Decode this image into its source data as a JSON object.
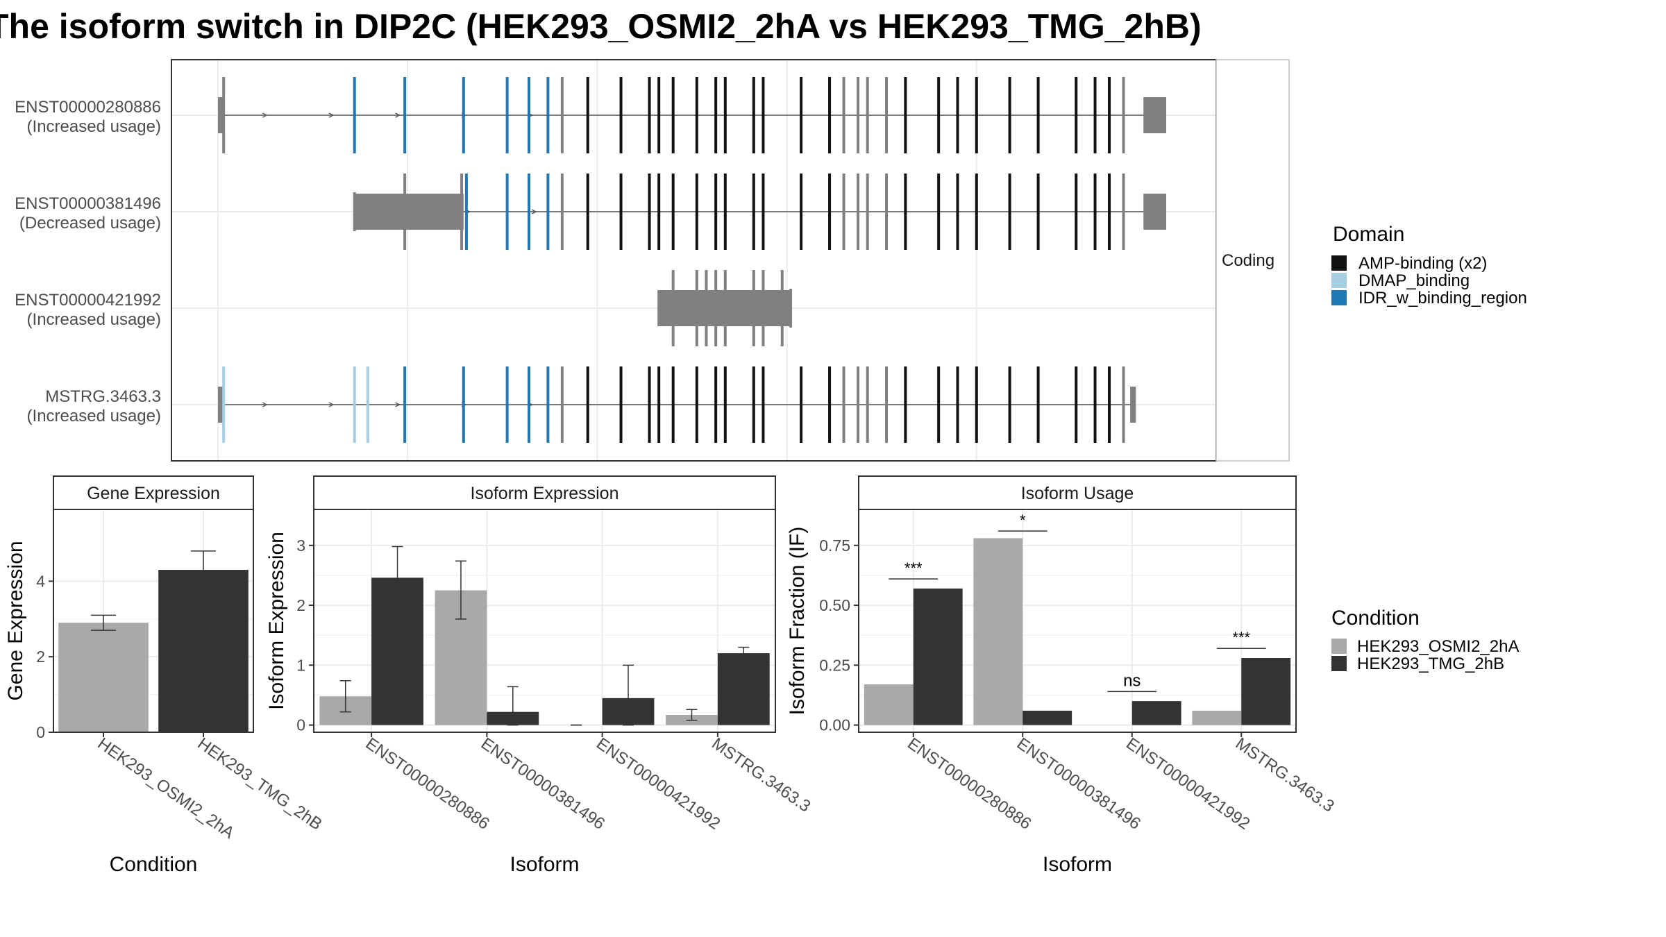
{
  "title": "The isoform switch in DIP2C (HEK293_OSMI2_2hA vs HEK293_TMG_2hB)",
  "colors": {
    "grey_bar": "#A9A9A9",
    "dark_bar": "#333333",
    "amp": "#111111",
    "dmap": "#A6CEE3",
    "idr": "#1F78B4",
    "noncoding_exon": "#808080",
    "intron": "#555555",
    "grid": "#EBEBEB",
    "strip_bg": "#FFFFFF"
  },
  "structure": {
    "strip_label": "Coding",
    "transcripts": [
      {
        "id": "ENST00000280886",
        "label_line1": "ENST00000280886",
        "label_line2": "(Increased usage)",
        "start": 0.0,
        "end": 100.0,
        "cds_start": 0.6,
        "cds_end": 97.6,
        "exons": [
          {
            "pos": 0.6,
            "type": "grey"
          },
          {
            "pos": 14.4,
            "type": "idr"
          },
          {
            "pos": 19.7,
            "type": "idr"
          },
          {
            "pos": 25.9,
            "type": "idr"
          },
          {
            "pos": 30.5,
            "type": "idr"
          },
          {
            "pos": 32.8,
            "type": "idr"
          },
          {
            "pos": 34.8,
            "type": "idr"
          },
          {
            "pos": 36.3,
            "type": "grey"
          },
          {
            "pos": 39.0,
            "type": "amp"
          },
          {
            "pos": 42.5,
            "type": "amp"
          },
          {
            "pos": 45.5,
            "type": "amp"
          },
          {
            "pos": 46.5,
            "type": "amp"
          },
          {
            "pos": 48.0,
            "type": "amp"
          },
          {
            "pos": 50.5,
            "type": "amp"
          },
          {
            "pos": 52.5,
            "type": "amp"
          },
          {
            "pos": 53.5,
            "type": "amp"
          },
          {
            "pos": 56.5,
            "type": "amp"
          },
          {
            "pos": 57.5,
            "type": "amp"
          },
          {
            "pos": 61.5,
            "type": "amp"
          },
          {
            "pos": 64.5,
            "type": "amp"
          },
          {
            "pos": 66.0,
            "type": "grey"
          },
          {
            "pos": 67.5,
            "type": "grey"
          },
          {
            "pos": 68.5,
            "type": "grey"
          },
          {
            "pos": 70.5,
            "type": "grey"
          },
          {
            "pos": 72.5,
            "type": "amp"
          },
          {
            "pos": 76.0,
            "type": "amp"
          },
          {
            "pos": 78.0,
            "type": "amp"
          },
          {
            "pos": 80.0,
            "type": "amp"
          },
          {
            "pos": 83.5,
            "type": "amp"
          },
          {
            "pos": 86.5,
            "type": "amp"
          },
          {
            "pos": 90.5,
            "type": "amp"
          },
          {
            "pos": 92.5,
            "type": "amp"
          },
          {
            "pos": 94.0,
            "type": "amp"
          },
          {
            "pos": 95.5,
            "type": "grey"
          }
        ]
      },
      {
        "id": "ENST00000381496",
        "label_line1": "ENST00000381496",
        "label_line2": "(Decreased usage)",
        "start": 14.4,
        "end": 100.0,
        "cds_start": 25.9,
        "cds_end": 97.6,
        "exons": [
          {
            "pos": 14.4,
            "type": "grey"
          },
          {
            "pos": 19.7,
            "type": "grey"
          },
          {
            "pos": 25.7,
            "type": "grey"
          },
          {
            "pos": 26.2,
            "type": "idr"
          },
          {
            "pos": 30.5,
            "type": "idr"
          },
          {
            "pos": 32.8,
            "type": "idr"
          },
          {
            "pos": 34.8,
            "type": "idr"
          },
          {
            "pos": 36.3,
            "type": "grey"
          },
          {
            "pos": 39.0,
            "type": "amp"
          },
          {
            "pos": 42.5,
            "type": "amp"
          },
          {
            "pos": 45.5,
            "type": "amp"
          },
          {
            "pos": 46.5,
            "type": "amp"
          },
          {
            "pos": 48.0,
            "type": "amp"
          },
          {
            "pos": 50.5,
            "type": "amp"
          },
          {
            "pos": 52.5,
            "type": "amp"
          },
          {
            "pos": 53.5,
            "type": "amp"
          },
          {
            "pos": 56.5,
            "type": "amp"
          },
          {
            "pos": 57.5,
            "type": "amp"
          },
          {
            "pos": 61.5,
            "type": "amp"
          },
          {
            "pos": 64.5,
            "type": "amp"
          },
          {
            "pos": 66.0,
            "type": "grey"
          },
          {
            "pos": 67.5,
            "type": "grey"
          },
          {
            "pos": 68.5,
            "type": "grey"
          },
          {
            "pos": 70.5,
            "type": "grey"
          },
          {
            "pos": 72.5,
            "type": "amp"
          },
          {
            "pos": 76.0,
            "type": "amp"
          },
          {
            "pos": 78.0,
            "type": "amp"
          },
          {
            "pos": 80.0,
            "type": "amp"
          },
          {
            "pos": 83.5,
            "type": "amp"
          },
          {
            "pos": 86.5,
            "type": "amp"
          },
          {
            "pos": 90.5,
            "type": "amp"
          },
          {
            "pos": 92.5,
            "type": "amp"
          },
          {
            "pos": 94.0,
            "type": "amp"
          },
          {
            "pos": 95.5,
            "type": "grey"
          }
        ]
      },
      {
        "id": "ENST00000421992",
        "label_line1": "ENST00000421992",
        "label_line2": "(Increased usage)",
        "start": 46.5,
        "end": 60.5,
        "cds_start": 60.5,
        "cds_end": 60.5,
        "exons": [
          {
            "pos": 46.5,
            "type": "grey"
          },
          {
            "pos": 48.0,
            "type": "grey"
          },
          {
            "pos": 50.5,
            "type": "grey"
          },
          {
            "pos": 51.5,
            "type": "grey"
          },
          {
            "pos": 52.5,
            "type": "grey"
          },
          {
            "pos": 53.5,
            "type": "grey"
          },
          {
            "pos": 56.5,
            "type": "grey"
          },
          {
            "pos": 57.5,
            "type": "grey"
          },
          {
            "pos": 59.5,
            "type": "grey"
          },
          {
            "pos": 60.4,
            "type": "grey"
          }
        ]
      },
      {
        "id": "MSTRG.3463.3",
        "label_line1": "MSTRG.3463.3",
        "label_line2": "(Increased usage)",
        "start": 0.0,
        "end": 96.8,
        "cds_start": 0.6,
        "cds_end": 96.2,
        "exons": [
          {
            "pos": 0.6,
            "type": "dmap"
          },
          {
            "pos": 14.4,
            "type": "dmap"
          },
          {
            "pos": 15.8,
            "type": "dmap"
          },
          {
            "pos": 19.7,
            "type": "idr"
          },
          {
            "pos": 25.9,
            "type": "idr"
          },
          {
            "pos": 30.5,
            "type": "idr"
          },
          {
            "pos": 32.8,
            "type": "idr"
          },
          {
            "pos": 34.8,
            "type": "idr"
          },
          {
            "pos": 36.3,
            "type": "grey"
          },
          {
            "pos": 39.0,
            "type": "amp"
          },
          {
            "pos": 42.5,
            "type": "amp"
          },
          {
            "pos": 45.5,
            "type": "amp"
          },
          {
            "pos": 46.5,
            "type": "amp"
          },
          {
            "pos": 48.0,
            "type": "amp"
          },
          {
            "pos": 50.5,
            "type": "amp"
          },
          {
            "pos": 52.5,
            "type": "amp"
          },
          {
            "pos": 53.5,
            "type": "amp"
          },
          {
            "pos": 56.5,
            "type": "amp"
          },
          {
            "pos": 57.5,
            "type": "amp"
          },
          {
            "pos": 61.5,
            "type": "amp"
          },
          {
            "pos": 64.5,
            "type": "amp"
          },
          {
            "pos": 66.0,
            "type": "grey"
          },
          {
            "pos": 67.5,
            "type": "grey"
          },
          {
            "pos": 68.5,
            "type": "grey"
          },
          {
            "pos": 70.5,
            "type": "grey"
          },
          {
            "pos": 72.5,
            "type": "amp"
          },
          {
            "pos": 76.0,
            "type": "amp"
          },
          {
            "pos": 78.0,
            "type": "amp"
          },
          {
            "pos": 80.0,
            "type": "amp"
          },
          {
            "pos": 83.5,
            "type": "amp"
          },
          {
            "pos": 86.5,
            "type": "amp"
          },
          {
            "pos": 90.5,
            "type": "amp"
          },
          {
            "pos": 92.5,
            "type": "amp"
          },
          {
            "pos": 94.0,
            "type": "amp"
          },
          {
            "pos": 95.5,
            "type": "grey"
          }
        ]
      }
    ]
  },
  "legend_domain": {
    "title": "Domain",
    "items": [
      {
        "label": "AMP-binding (x2)",
        "color": "#111111"
      },
      {
        "label": "DMAP_binding",
        "color": "#A6CEE3"
      },
      {
        "label": "IDR_w_binding_region",
        "color": "#1F78B4"
      }
    ]
  },
  "legend_condition": {
    "title": "Condition",
    "items": [
      {
        "label": "HEK293_OSMI2_2hA",
        "color": "#A9A9A9"
      },
      {
        "label": "HEK293_TMG_2hB",
        "color": "#333333"
      }
    ]
  },
  "chart_data": [
    {
      "type": "bar",
      "title": "Gene Expression",
      "xlabel": "Condition",
      "ylabel": "Gene Expression",
      "categories": [
        "HEK293_OSMI2_2hA",
        "HEK293_TMG_2hB"
      ],
      "values": [
        2.9,
        4.3
      ],
      "err_low": [
        2.7,
        3.8
      ],
      "err_high": [
        3.1,
        4.8
      ],
      "ylim": [
        0,
        5.9
      ],
      "yticks": [
        0,
        2,
        4
      ],
      "ytick_labels": [
        "0",
        "2",
        "4"
      ]
    },
    {
      "type": "bar",
      "title": "Isoform Expression",
      "xlabel": "Isoform",
      "ylabel": "Isoform Expression",
      "categories": [
        "ENST00000280886",
        "ENST00000381496",
        "ENST00000421992",
        "MSTRG.3463.3"
      ],
      "series": [
        {
          "name": "HEK293_OSMI2_2hA",
          "values": [
            0.48,
            2.25,
            0.0,
            0.17
          ],
          "err_low": [
            0.22,
            1.77,
            0.0,
            0.08
          ],
          "err_high": [
            0.74,
            2.74,
            0.0,
            0.26
          ]
        },
        {
          "name": "HEK293_TMG_2hB",
          "values": [
            2.46,
            0.22,
            0.45,
            1.2
          ],
          "err_low": [
            1.95,
            0.0,
            0.0,
            1.1
          ],
          "err_high": [
            2.98,
            0.64,
            1.0,
            1.3
          ]
        }
      ],
      "ylim": [
        -0.12,
        3.6
      ],
      "yticks": [
        0,
        1,
        2,
        3
      ],
      "ytick_labels": [
        "0",
        "1",
        "2",
        "3"
      ]
    },
    {
      "type": "bar",
      "title": "Isoform Usage",
      "xlabel": "Isoform",
      "ylabel": "Isoform Fraction (IF)",
      "categories": [
        "ENST00000280886",
        "ENST00000381496",
        "ENST00000421992",
        "MSTRG.3463.3"
      ],
      "series": [
        {
          "name": "HEK293_OSMI2_2hA",
          "values": [
            0.17,
            0.78,
            0.0,
            0.06
          ]
        },
        {
          "name": "HEK293_TMG_2hB",
          "values": [
            0.57,
            0.06,
            0.1,
            0.28
          ]
        }
      ],
      "significance": [
        "***",
        "*",
        "ns",
        "***"
      ],
      "sig_level": [
        0.61,
        0.81,
        0.14,
        0.32
      ],
      "ylim": [
        -0.03,
        0.9
      ],
      "yticks": [
        0,
        0.25,
        0.5,
        0.75
      ],
      "ytick_labels": [
        "0.00",
        "0.25",
        "0.50",
        "0.75"
      ]
    }
  ]
}
